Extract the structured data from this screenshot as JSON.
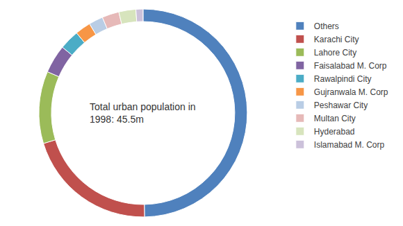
{
  "chart_data": {
    "type": "donut",
    "center_text": [
      "Total urban population in",
      "1998: 45.5m"
    ],
    "categories": [
      "Others",
      "Karachi City",
      "Lahore City",
      "Faisalabad M. Corp",
      "Rawalpindi City",
      "Gujranwala M. Corp",
      "Peshawar City",
      "Multan City",
      "Hyderabad",
      "Islamabad M. Corp"
    ],
    "values": [
      22.6,
      9.3,
      5.1,
      2.0,
      1.4,
      1.1,
      1.0,
      1.2,
      1.2,
      0.5
    ],
    "colors": [
      "#4f81bd",
      "#c0504d",
      "#9bbb59",
      "#8064a2",
      "#4bacc6",
      "#f79646",
      "#b9cde5",
      "#e6b9b8",
      "#d7e4bd",
      "#ccc1da"
    ],
    "legend": "right",
    "data_labels": false
  }
}
